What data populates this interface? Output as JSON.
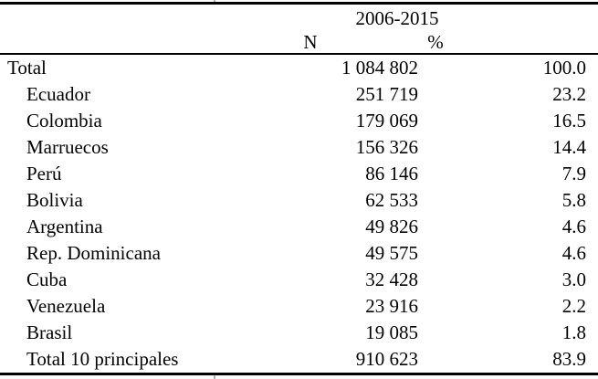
{
  "table": {
    "period_header": "2006-2015",
    "columns": {
      "n_label": "N",
      "pct_label": "%"
    },
    "rows": [
      {
        "label": "Total",
        "n": "1 084 802",
        "pct": "100.0"
      },
      {
        "label": "Ecuador",
        "n": "251 719",
        "pct": "23.2"
      },
      {
        "label": "Colombia",
        "n": "179 069",
        "pct": "16.5"
      },
      {
        "label": "Marruecos",
        "n": "156 326",
        "pct": "14.4"
      },
      {
        "label": "Perú",
        "n": "86 146",
        "pct": "7.9"
      },
      {
        "label": "Bolivia",
        "n": "62 533",
        "pct": "5.8"
      },
      {
        "label": "Argentina",
        "n": "49 826",
        "pct": "4.6"
      },
      {
        "label": "Rep. Dominicana",
        "n": "49 575",
        "pct": "4.6"
      },
      {
        "label": "Cuba",
        "n": "32 428",
        "pct": "3.0"
      },
      {
        "label": "Venezuela",
        "n": "23 916",
        "pct": "2.2"
      },
      {
        "label": "Brasil",
        "n": "19 085",
        "pct": "1.8"
      },
      {
        "label": "Total 10 principales",
        "n": "910 623",
        "pct": "83.9"
      }
    ],
    "colors": {
      "text": "#000000",
      "background": "#ffffff",
      "rule": "#000000"
    }
  }
}
